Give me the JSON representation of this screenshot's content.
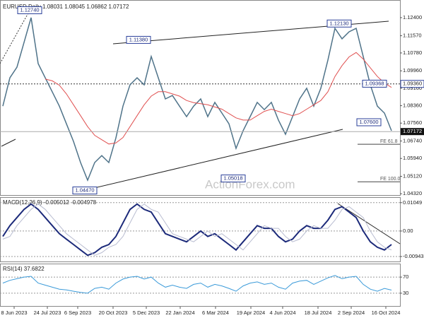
{
  "chart_data": [
    {
      "type": "line",
      "title": "EURUSD,Daily",
      "header_values": [
        1.08031,
        1.08045,
        1.06862,
        1.07172
      ],
      "xlim": [
        -0.4,
        56.2
      ],
      "ylim": [
        1.0426,
        1.1308
      ],
      "yticks": [
        {
          "value": 1.124,
          "label": "1.12400"
        },
        {
          "value": 1.1157,
          "label": "1.11570"
        },
        {
          "value": 1.1078,
          "label": "1.10780"
        },
        {
          "value": 1.0996,
          "label": "1.09960"
        },
        {
          "value": 1.0916,
          "label": "1.09160"
        },
        {
          "value": 1.0836,
          "label": "1.08360"
        },
        {
          "value": 1.0756,
          "label": "1.07560"
        },
        {
          "value": 1.0674,
          "label": "1.06740"
        },
        {
          "value": 1.0594,
          "label": "1.05940"
        },
        {
          "value": 1.0512,
          "label": "1.05120"
        },
        {
          "value": 1.0432,
          "label": "1.04320"
        }
      ],
      "series": [
        {
          "color": "#4f7389",
          "values": [
            1.0834,
            1.0964,
            1.1013,
            1.1126,
            1.124,
            1.1029,
            1.0964,
            1.0899,
            1.0834,
            1.0753,
            1.0672,
            1.0575,
            1.0494,
            1.0575,
            1.0607,
            1.0575,
            1.0688,
            1.0834,
            1.0932,
            1.0964,
            1.0932,
            1.1062,
            1.0964,
            1.0867,
            1.0883,
            1.0834,
            1.0786,
            1.0834,
            1.0867,
            1.0786,
            1.0851,
            1.0802,
            1.0753,
            1.064,
            1.0721,
            1.0786,
            1.0851,
            1.0818,
            1.0851,
            1.077,
            1.0705,
            1.0786,
            1.0867,
            1.0916,
            1.0834,
            1.0916,
            1.1045,
            1.1191,
            1.1143,
            1.1175,
            1.1191,
            1.1062,
            1.0932,
            1.0834,
            1.0802,
            1.0721
          ]
        },
        {
          "color": "#e05050",
          "values": [
            null,
            null,
            null,
            null,
            null,
            null,
            1.0958,
            1.095,
            1.093,
            1.089,
            1.084,
            1.079,
            1.074,
            1.07,
            1.068,
            1.066,
            1.0665,
            1.069,
            1.074,
            1.079,
            1.084,
            1.088,
            1.09,
            1.09,
            1.089,
            1.088,
            1.086,
            1.085,
            1.0845,
            1.084,
            1.083,
            1.082,
            1.08,
            1.078,
            1.077,
            1.077,
            1.079,
            1.081,
            1.082,
            1.081,
            1.08,
            1.079,
            1.08,
            1.082,
            1.084,
            1.086,
            1.09,
            1.097,
            1.102,
            1.106,
            1.108,
            1.105,
            1.101,
            1.097,
            1.094,
            1.092
          ]
        }
      ],
      "hlines": [
        {
          "value": 1.0936,
          "label": "1.09360"
        }
      ],
      "annotations": [
        {
          "label": "1.12740",
          "value": 1.1274,
          "x": 3.8
        },
        {
          "label": "1.11380",
          "value": 1.1138,
          "x": 19.2
        },
        {
          "label": "1.12130",
          "value": 1.1213,
          "x": 47.6
        },
        {
          "label": "1.09368",
          "value": 1.0937,
          "x": 52.6
        },
        {
          "label": "1.07600",
          "value": 1.076,
          "x": 51.8
        },
        {
          "label": "1.05018",
          "value": 1.0502,
          "x": 32.6
        },
        {
          "label": "1.04470",
          "value": 1.0447,
          "x": 11.6
        }
      ],
      "fe_levels": [
        {
          "label": "FE 61.8",
          "value": 1.0659
        },
        {
          "label": "FE 100.0",
          "value": 1.0487
        }
      ],
      "watermark": "ActionForex.com"
    },
    {
      "type": "line",
      "title": "MACD(12,26,9)",
      "header_values": [
        -0.005012,
        -0.004978
      ],
      "xlim": [
        -0.4,
        56.2
      ],
      "ylim": [
        -0.011,
        0.012
      ],
      "yticks": [
        0.01049,
        {
          "value": 0,
          "label": "0.00"
        },
        -0.009435
      ],
      "series": [
        {
          "color": "#1c2a7a",
          "values": [
            -0.002,
            0.002,
            0.005,
            0.008,
            0.01,
            0.008,
            0.005,
            0.002,
            -0.001,
            -0.003,
            -0.005,
            -0.007,
            -0.009,
            -0.008,
            -0.006,
            -0.005,
            -0.002,
            0.003,
            0.008,
            0.01,
            0.008,
            0.007,
            0.003,
            -0.001,
            -0.002,
            -0.003,
            -0.004,
            -0.002,
            0.0,
            -0.002,
            -0.001,
            -0.003,
            -0.005,
            -0.007,
            -0.004,
            -0.001,
            0.002,
            0.001,
            0.001,
            -0.002,
            -0.004,
            -0.003,
            0.0,
            0.002,
            0.001,
            0.001,
            0.004,
            0.008,
            0.009,
            0.007,
            0.005,
            0.0,
            -0.004,
            -0.006,
            -0.007,
            -0.005
          ]
        },
        {
          "color": "#b8bcd0",
          "values": [
            -0.003,
            -0.002,
            0.002,
            0.005,
            0.008,
            0.01,
            0.008,
            0.005,
            0.002,
            -0.001,
            -0.003,
            -0.005,
            -0.007,
            -0.009,
            -0.008,
            -0.006,
            -0.005,
            -0.002,
            0.003,
            0.008,
            0.01,
            0.008,
            0.007,
            0.003,
            -0.001,
            -0.002,
            -0.003,
            -0.004,
            -0.002,
            0.0,
            -0.002,
            -0.001,
            -0.003,
            -0.005,
            -0.007,
            -0.004,
            -0.001,
            0.002,
            0.001,
            0.001,
            -0.002,
            -0.004,
            -0.003,
            0.0,
            0.002,
            0.001,
            0.001,
            0.004,
            0.008,
            0.009,
            0.007,
            0.005,
            0.0,
            -0.004,
            -0.006,
            -0.007
          ]
        }
      ]
    },
    {
      "type": "line",
      "title": "RSI(14)",
      "header_values": [
        37.6822
      ],
      "xlim": [
        -0.4,
        56.2
      ],
      "ylim": [
        0,
        100
      ],
      "yticks": [
        70,
        30
      ],
      "series": [
        {
          "color": "#3a9ad9",
          "values": [
            55,
            62,
            66,
            70,
            72,
            55,
            50,
            45,
            40,
            38,
            35,
            32,
            30,
            42,
            45,
            40,
            55,
            65,
            70,
            72,
            65,
            70,
            55,
            45,
            50,
            45,
            42,
            52,
            55,
            45,
            52,
            48,
            42,
            35,
            48,
            55,
            58,
            52,
            55,
            45,
            40,
            55,
            60,
            62,
            52,
            60,
            68,
            74,
            66,
            70,
            72,
            52,
            40,
            35,
            42,
            37.6822
          ]
        }
      ],
      "xticks": [
        {
          "value": 1.6,
          "label": "8 Jun 2023"
        },
        {
          "value": 6.3,
          "label": "24 Jul 2023"
        },
        {
          "value": 10.6,
          "label": "6 Sep 2023"
        },
        {
          "value": 15.6,
          "label": "20 Oct 2023"
        },
        {
          "value": 20.3,
          "label": "5 Dec 2023"
        },
        {
          "value": 25.1,
          "label": "22 Jan 2024"
        },
        {
          "value": 30.1,
          "label": "6 Mar 2024"
        },
        {
          "value": 35.1,
          "label": "19 Apr 2024"
        },
        {
          "value": 39.6,
          "label": "4 Jun 2024"
        },
        {
          "value": 44.6,
          "label": "18 Jul 2024"
        },
        {
          "value": 49.3,
          "label": "2 Sep 2024"
        },
        {
          "value": 54.2,
          "label": "16 Oct 2024"
        }
      ]
    }
  ]
}
